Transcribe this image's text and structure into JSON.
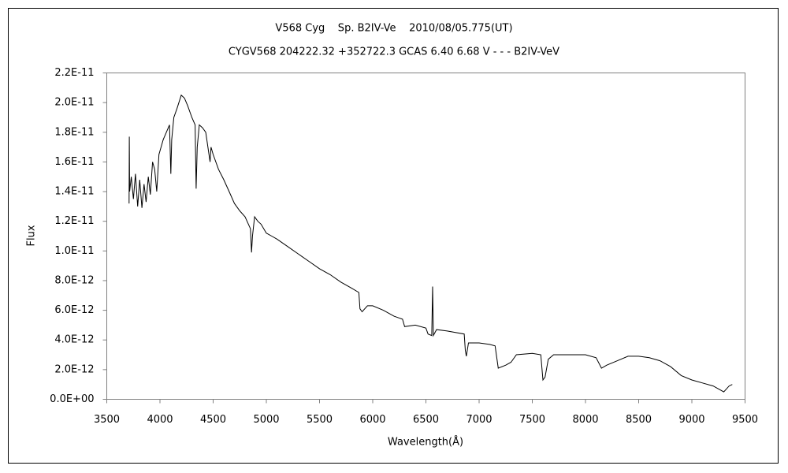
{
  "chart_data": {
    "type": "line",
    "title": "V568 Cyg    Sp. B2IV-Ve    2010/08/05.775(UT)",
    "subtitle": "CYGV568 204222.32 +352722.3 GCAS 6.40 6.68 V - - - B2IV-VeV",
    "x_label": "Wavelength(Å)",
    "y_label": "Flux",
    "color": "#000000",
    "xlim": [
      3500,
      9500
    ],
    "xticks": [
      3500,
      4000,
      4500,
      5000,
      5500,
      6000,
      6500,
      7000,
      7500,
      8000,
      8500,
      9000,
      9500
    ],
    "ylim": [
      0,
      2.2e-11
    ],
    "yticks": [
      {
        "value": 0,
        "label": "0.0E+00"
      },
      {
        "value": 2e-12,
        "label": "2.0E-12"
      },
      {
        "value": 4e-12,
        "label": "4.0E-12"
      },
      {
        "value": 6e-12,
        "label": "6.0E-12"
      },
      {
        "value": 8e-12,
        "label": "8.0E-12"
      },
      {
        "value": 1e-11,
        "label": "1.0E-11"
      },
      {
        "value": 1.2e-11,
        "label": "1.2E-11"
      },
      {
        "value": 1.4e-11,
        "label": "1.4E-11"
      },
      {
        "value": 1.6e-11,
        "label": "1.6E-11"
      },
      {
        "value": 1.8e-11,
        "label": "1.8E-11"
      },
      {
        "value": 2e-11,
        "label": "2.0E-11"
      },
      {
        "value": 2.2e-11,
        "label": "2.2E-11"
      }
    ],
    "x": [
      3710,
      3712,
      3715,
      3730,
      3750,
      3770,
      3790,
      3810,
      3830,
      3850,
      3870,
      3890,
      3910,
      3930,
      3950,
      3970,
      3990,
      4010,
      4030,
      4060,
      4090,
      4102,
      4110,
      4130,
      4160,
      4200,
      4230,
      4260,
      4300,
      4330,
      4340,
      4350,
      4370,
      4400,
      4430,
      4471,
      4480,
      4500,
      4550,
      4600,
      4650,
      4700,
      4750,
      4800,
      4850,
      4861,
      4870,
      4890,
      4920,
      4950,
      5000,
      5050,
      5100,
      5200,
      5300,
      5400,
      5500,
      5600,
      5700,
      5800,
      5870,
      5880,
      5900,
      5950,
      6000,
      6100,
      6200,
      6280,
      6300,
      6400,
      6500,
      6520,
      6555,
      6563,
      6570,
      6600,
      6700,
      6860,
      6870,
      6880,
      6900,
      7000,
      7100,
      7150,
      7180,
      7250,
      7300,
      7350,
      7500,
      7580,
      7600,
      7620,
      7650,
      7700,
      7800,
      8000,
      8100,
      8150,
      8200,
      8300,
      8400,
      8500,
      8600,
      8700,
      8800,
      8900,
      9000,
      9100,
      9200,
      9300,
      9350,
      9380
    ],
    "values": [
      1.32e-11,
      1.77e-11,
      1.4e-11,
      1.5e-11,
      1.35e-11,
      1.52e-11,
      1.3e-11,
      1.48e-11,
      1.29e-11,
      1.45e-11,
      1.33e-11,
      1.5e-11,
      1.38e-11,
      1.6e-11,
      1.55e-11,
      1.4e-11,
      1.65e-11,
      1.7e-11,
      1.75e-11,
      1.8e-11,
      1.85e-11,
      1.52e-11,
      1.75e-11,
      1.9e-11,
      1.96e-11,
      2.05e-11,
      2.03e-11,
      1.98e-11,
      1.9e-11,
      1.85e-11,
      1.42e-11,
      1.7e-11,
      1.85e-11,
      1.83e-11,
      1.8e-11,
      1.6e-11,
      1.7e-11,
      1.65e-11,
      1.55e-11,
      1.48e-11,
      1.4e-11,
      1.32e-11,
      1.27e-11,
      1.23e-11,
      1.15e-11,
      9.9e-12,
      1.1e-11,
      1.23e-11,
      1.2e-11,
      1.18e-11,
      1.12e-11,
      1.1e-11,
      1.08e-11,
      1.03e-11,
      9.8e-12,
      9.3e-12,
      8.8e-12,
      8.4e-12,
      7.9e-12,
      7.5e-12,
      7.2e-12,
      6.1e-12,
      5.9e-12,
      6.3e-12,
      6.3e-12,
      6e-12,
      5.6e-12,
      5.4e-12,
      4.9e-12,
      5e-12,
      4.8e-12,
      4.4e-12,
      4.3e-12,
      7.6e-12,
      4.3e-12,
      4.7e-12,
      4.6e-12,
      4.4e-12,
      3.3e-12,
      2.9e-12,
      3.8e-12,
      3.8e-12,
      3.7e-12,
      3.6e-12,
      2.1e-12,
      2.3e-12,
      2.5e-12,
      3e-12,
      3.1e-12,
      3e-12,
      1.3e-12,
      1.5e-12,
      2.7e-12,
      3e-12,
      3e-12,
      3e-12,
      2.8e-12,
      2.1e-12,
      2.3e-12,
      2.6e-12,
      2.9e-12,
      2.9e-12,
      2.8e-12,
      2.6e-12,
      2.2e-12,
      1.6e-12,
      1.3e-12,
      1.1e-12,
      9e-13,
      5e-13,
      9e-13,
      1e-12
    ]
  }
}
